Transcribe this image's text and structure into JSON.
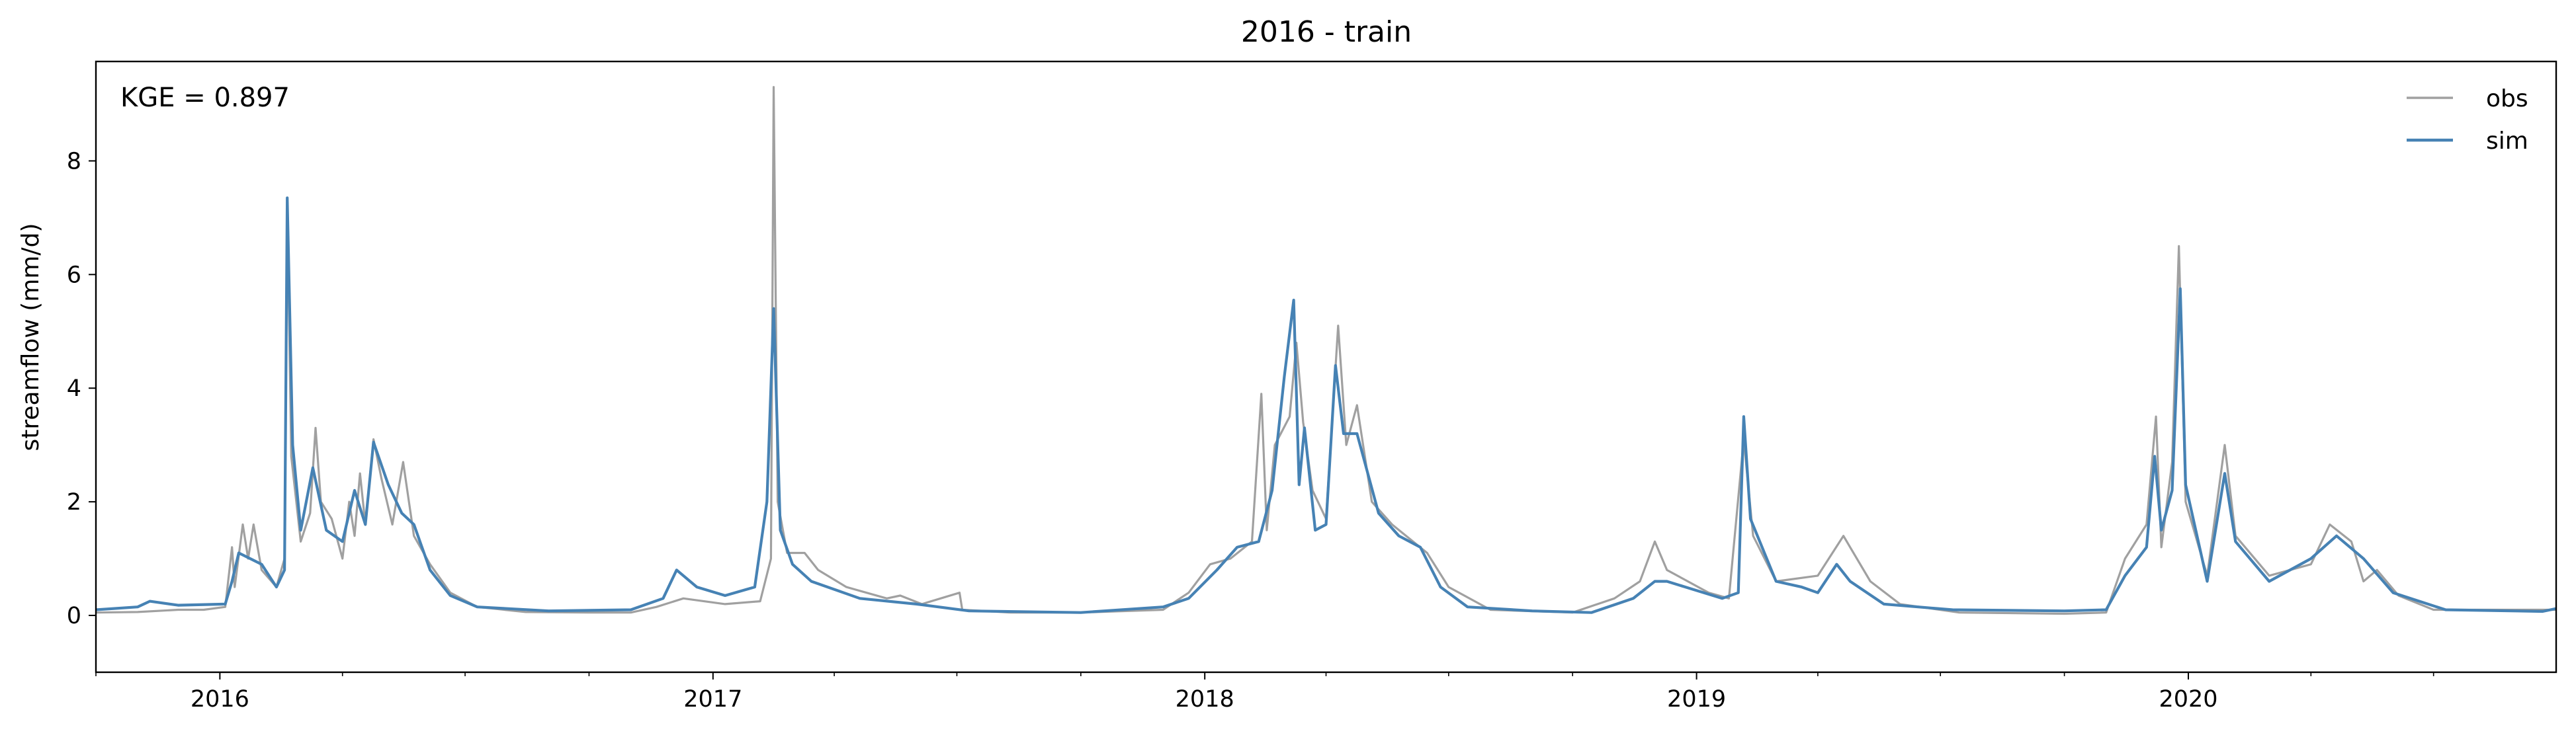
{
  "chart_data": {
    "type": "line",
    "title": "2016 - train",
    "xlabel": "",
    "ylabel": "streamflow (mm/d)",
    "annotation": "KGE = 0.897",
    "x_ticks": [
      "2016",
      "2017",
      "2018",
      "2019",
      "2020"
    ],
    "y_ticks": [
      "0",
      "2",
      "4",
      "6",
      "8"
    ],
    "xlim": [
      "2015-10-01",
      "2020-09-30"
    ],
    "ylim": [
      -1.0,
      9.75
    ],
    "grid": false,
    "legend": {
      "placement": "top-right",
      "entries": [
        "obs",
        "sim"
      ]
    },
    "colors": {
      "obs": "#a0a0a0",
      "sim": "#4682b4"
    },
    "series": [
      {
        "name": "obs",
        "points": [
          [
            "2015-10-01",
            0.05
          ],
          [
            "2015-11-01",
            0.06
          ],
          [
            "2015-12-01",
            0.1
          ],
          [
            "2015-12-20",
            0.1
          ],
          [
            "2016-01-05",
            0.15
          ],
          [
            "2016-01-10",
            1.2
          ],
          [
            "2016-01-12",
            0.5
          ],
          [
            "2016-01-18",
            1.6
          ],
          [
            "2016-01-22",
            1.0
          ],
          [
            "2016-01-26",
            1.6
          ],
          [
            "2016-02-01",
            0.8
          ],
          [
            "2016-02-12",
            0.5
          ],
          [
            "2016-02-18",
            1.0
          ],
          [
            "2016-02-20",
            7.3
          ],
          [
            "2016-02-23",
            2.8
          ],
          [
            "2016-03-01",
            1.3
          ],
          [
            "2016-03-08",
            1.8
          ],
          [
            "2016-03-12",
            3.3
          ],
          [
            "2016-03-16",
            2.0
          ],
          [
            "2016-03-24",
            1.7
          ],
          [
            "2016-04-01",
            1.0
          ],
          [
            "2016-04-06",
            2.0
          ],
          [
            "2016-04-10",
            1.4
          ],
          [
            "2016-04-14",
            2.5
          ],
          [
            "2016-04-18",
            1.6
          ],
          [
            "2016-04-24",
            3.1
          ],
          [
            "2016-04-30",
            2.4
          ],
          [
            "2016-05-08",
            1.6
          ],
          [
            "2016-05-16",
            2.7
          ],
          [
            "2016-05-24",
            1.4
          ],
          [
            "2016-06-05",
            0.9
          ],
          [
            "2016-06-20",
            0.4
          ],
          [
            "2016-07-10",
            0.15
          ],
          [
            "2016-08-15",
            0.06
          ],
          [
            "2016-10-01",
            0.05
          ],
          [
            "2016-11-01",
            0.05
          ],
          [
            "2016-11-20",
            0.15
          ],
          [
            "2016-12-10",
            0.3
          ],
          [
            "2017-01-10",
            0.2
          ],
          [
            "2017-02-05",
            0.25
          ],
          [
            "2017-02-13",
            1.0
          ],
          [
            "2017-02-15",
            9.3
          ],
          [
            "2017-02-18",
            2.0
          ],
          [
            "2017-02-25",
            1.1
          ],
          [
            "2017-03-10",
            1.1
          ],
          [
            "2017-03-20",
            0.8
          ],
          [
            "2017-04-10",
            0.5
          ],
          [
            "2017-05-10",
            0.3
          ],
          [
            "2017-05-20",
            0.35
          ],
          [
            "2017-06-05",
            0.2
          ],
          [
            "2017-07-03",
            0.4
          ],
          [
            "2017-07-05",
            0.1
          ],
          [
            "2017-08-10",
            0.05
          ],
          [
            "2017-10-01",
            0.05
          ],
          [
            "2017-12-01",
            0.1
          ],
          [
            "2017-12-20",
            0.4
          ],
          [
            "2018-01-05",
            0.9
          ],
          [
            "2018-01-20",
            1.0
          ],
          [
            "2018-02-05",
            1.3
          ],
          [
            "2018-02-12",
            3.9
          ],
          [
            "2018-02-16",
            1.5
          ],
          [
            "2018-02-22",
            3.0
          ],
          [
            "2018-03-05",
            3.5
          ],
          [
            "2018-03-10",
            4.8
          ],
          [
            "2018-03-15",
            3.4
          ],
          [
            "2018-03-22",
            2.2
          ],
          [
            "2018-04-01",
            1.7
          ],
          [
            "2018-04-10",
            5.1
          ],
          [
            "2018-04-16",
            3.0
          ],
          [
            "2018-04-24",
            3.7
          ],
          [
            "2018-05-05",
            2.0
          ],
          [
            "2018-05-20",
            1.6
          ],
          [
            "2018-06-15",
            1.1
          ],
          [
            "2018-07-01",
            0.5
          ],
          [
            "2018-08-01",
            0.1
          ],
          [
            "2018-10-01",
            0.05
          ],
          [
            "2018-11-01",
            0.3
          ],
          [
            "2018-11-20",
            0.6
          ],
          [
            "2018-12-01",
            1.3
          ],
          [
            "2018-12-10",
            0.8
          ],
          [
            "2019-01-10",
            0.4
          ],
          [
            "2019-01-25",
            0.3
          ],
          [
            "2019-02-05",
            3.1
          ],
          [
            "2019-02-12",
            1.4
          ],
          [
            "2019-03-01",
            0.6
          ],
          [
            "2019-04-01",
            0.7
          ],
          [
            "2019-04-20",
            1.4
          ],
          [
            "2019-05-10",
            0.6
          ],
          [
            "2019-06-01",
            0.2
          ],
          [
            "2019-07-15",
            0.05
          ],
          [
            "2019-10-01",
            0.03
          ],
          [
            "2019-11-01",
            0.05
          ],
          [
            "2019-11-15",
            1.0
          ],
          [
            "2019-12-01",
            1.6
          ],
          [
            "2019-12-08",
            3.5
          ],
          [
            "2019-12-12",
            1.2
          ],
          [
            "2019-12-20",
            2.7
          ],
          [
            "2019-12-25",
            6.5
          ],
          [
            "2019-12-30",
            2.0
          ],
          [
            "2020-01-15",
            0.7
          ],
          [
            "2020-01-28",
            3.0
          ],
          [
            "2020-02-05",
            1.4
          ],
          [
            "2020-03-01",
            0.7
          ],
          [
            "2020-04-01",
            0.9
          ],
          [
            "2020-04-15",
            1.6
          ],
          [
            "2020-05-01",
            1.3
          ],
          [
            "2020-05-10",
            0.6
          ],
          [
            "2020-05-20",
            0.8
          ],
          [
            "2020-06-05",
            0.35
          ],
          [
            "2020-07-01",
            0.1
          ],
          [
            "2020-09-30",
            0.1
          ]
        ]
      },
      {
        "name": "sim",
        "points": [
          [
            "2015-10-01",
            0.1
          ],
          [
            "2015-11-01",
            0.15
          ],
          [
            "2015-11-10",
            0.25
          ],
          [
            "2015-12-01",
            0.18
          ],
          [
            "2016-01-05",
            0.2
          ],
          [
            "2016-01-10",
            0.6
          ],
          [
            "2016-01-15",
            1.1
          ],
          [
            "2016-02-01",
            0.9
          ],
          [
            "2016-02-12",
            0.5
          ],
          [
            "2016-02-18",
            0.8
          ],
          [
            "2016-02-20",
            7.35
          ],
          [
            "2016-02-24",
            3.0
          ],
          [
            "2016-03-01",
            1.5
          ],
          [
            "2016-03-10",
            2.6
          ],
          [
            "2016-03-20",
            1.5
          ],
          [
            "2016-04-01",
            1.3
          ],
          [
            "2016-04-10",
            2.2
          ],
          [
            "2016-04-18",
            1.6
          ],
          [
            "2016-04-24",
            3.05
          ],
          [
            "2016-05-05",
            2.3
          ],
          [
            "2016-05-15",
            1.8
          ],
          [
            "2016-05-24",
            1.6
          ],
          [
            "2016-06-05",
            0.8
          ],
          [
            "2016-06-20",
            0.35
          ],
          [
            "2016-07-10",
            0.15
          ],
          [
            "2016-09-01",
            0.08
          ],
          [
            "2016-11-01",
            0.1
          ],
          [
            "2016-11-25",
            0.3
          ],
          [
            "2016-12-05",
            0.8
          ],
          [
            "2016-12-20",
            0.5
          ],
          [
            "2017-01-10",
            0.35
          ],
          [
            "2017-02-01",
            0.5
          ],
          [
            "2017-02-10",
            2.0
          ],
          [
            "2017-02-15",
            5.4
          ],
          [
            "2017-02-20",
            1.5
          ],
          [
            "2017-03-01",
            0.9
          ],
          [
            "2017-03-15",
            0.6
          ],
          [
            "2017-04-20",
            0.3
          ],
          [
            "2017-06-01",
            0.2
          ],
          [
            "2017-07-10",
            0.08
          ],
          [
            "2017-10-01",
            0.05
          ],
          [
            "2017-12-01",
            0.15
          ],
          [
            "2017-12-20",
            0.3
          ],
          [
            "2018-01-10",
            0.8
          ],
          [
            "2018-01-25",
            1.2
          ],
          [
            "2018-02-10",
            1.3
          ],
          [
            "2018-02-20",
            2.2
          ],
          [
            "2018-03-01",
            4.2
          ],
          [
            "2018-03-08",
            5.55
          ],
          [
            "2018-03-12",
            2.3
          ],
          [
            "2018-03-16",
            3.3
          ],
          [
            "2018-03-24",
            1.5
          ],
          [
            "2018-04-01",
            1.6
          ],
          [
            "2018-04-08",
            4.4
          ],
          [
            "2018-04-14",
            3.2
          ],
          [
            "2018-04-24",
            3.2
          ],
          [
            "2018-05-10",
            1.8
          ],
          [
            "2018-05-25",
            1.4
          ],
          [
            "2018-06-10",
            1.2
          ],
          [
            "2018-06-25",
            0.5
          ],
          [
            "2018-07-15",
            0.15
          ],
          [
            "2018-09-01",
            0.08
          ],
          [
            "2018-10-15",
            0.05
          ],
          [
            "2018-11-15",
            0.3
          ],
          [
            "2018-12-01",
            0.6
          ],
          [
            "2018-12-10",
            0.6
          ],
          [
            "2019-01-20",
            0.3
          ],
          [
            "2019-02-01",
            0.4
          ],
          [
            "2019-02-05",
            3.5
          ],
          [
            "2019-02-10",
            1.7
          ],
          [
            "2019-03-01",
            0.6
          ],
          [
            "2019-03-20",
            0.5
          ],
          [
            "2019-04-01",
            0.4
          ],
          [
            "2019-04-15",
            0.9
          ],
          [
            "2019-04-25",
            0.6
          ],
          [
            "2019-05-20",
            0.2
          ],
          [
            "2019-07-10",
            0.1
          ],
          [
            "2019-10-01",
            0.08
          ],
          [
            "2019-11-01",
            0.1
          ],
          [
            "2019-11-15",
            0.7
          ],
          [
            "2019-12-01",
            1.2
          ],
          [
            "2019-12-07",
            2.8
          ],
          [
            "2019-12-12",
            1.5
          ],
          [
            "2019-12-20",
            2.2
          ],
          [
            "2019-12-26",
            5.75
          ],
          [
            "2019-12-30",
            2.3
          ],
          [
            "2020-01-15",
            0.6
          ],
          [
            "2020-01-28",
            2.5
          ],
          [
            "2020-02-05",
            1.3
          ],
          [
            "2020-03-01",
            0.6
          ],
          [
            "2020-04-01",
            1.0
          ],
          [
            "2020-04-20",
            1.4
          ],
          [
            "2020-05-10",
            1.0
          ],
          [
            "2020-06-01",
            0.4
          ],
          [
            "2020-07-10",
            0.1
          ],
          [
            "2020-09-20",
            0.07
          ],
          [
            "2020-09-30",
            0.12
          ]
        ]
      }
    ]
  }
}
